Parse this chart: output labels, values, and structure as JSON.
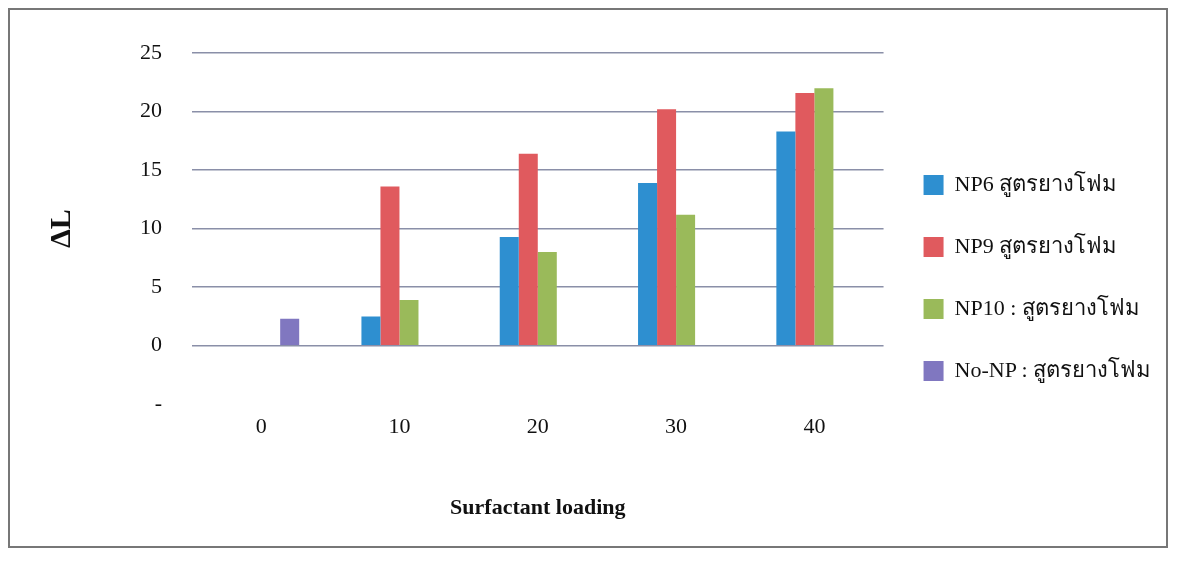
{
  "chart_data": {
    "type": "bar",
    "xlabel": "Surfactant loading",
    "ylabel": "ΔL",
    "categories": [
      "0",
      "10",
      "20",
      "30",
      "40"
    ],
    "series": [
      {
        "name": "NP6 สูตรยางโฟม",
        "color": "#2e8fd0",
        "values": [
          null,
          2.5,
          9.3,
          13.9,
          18.3
        ]
      },
      {
        "name": "NP9 สูตรยางโฟม",
        "color": "#e05a5e",
        "values": [
          null,
          13.6,
          16.4,
          20.2,
          21.6
        ]
      },
      {
        "name": "NP10 : สูตรยางโฟม",
        "color": "#9aba5a",
        "values": [
          null,
          3.9,
          8.0,
          11.2,
          22.0
        ]
      },
      {
        "name": "No-NP : สูตรยางโฟม",
        "color": "#8077c0",
        "values": [
          2.3,
          null,
          null,
          null,
          null
        ]
      }
    ],
    "ylim": [
      -5,
      25
    ],
    "yticks": [
      {
        "value": -5,
        "label": "-"
      },
      0,
      5,
      10,
      15,
      20,
      25
    ],
    "grid": "y",
    "legend": "right"
  }
}
